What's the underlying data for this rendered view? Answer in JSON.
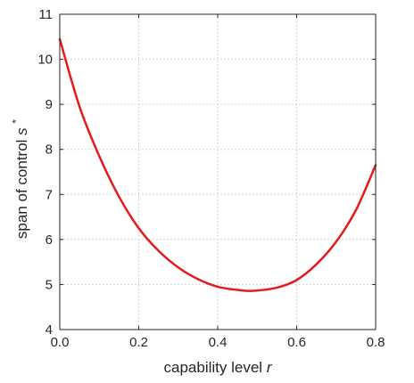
{
  "chart_data": {
    "type": "line",
    "title": "",
    "xlabel": "capability level",
    "xlabel_var": "r",
    "ylabel": "span of control",
    "ylabel_var": "s",
    "ylabel_sup": "*",
    "xlim": [
      0,
      0.8
    ],
    "ylim": [
      4,
      11
    ],
    "xticks": [
      0,
      0.2,
      0.4,
      0.6,
      0.8
    ],
    "xtick_labels": [
      "0.0",
      "0.2",
      "0.4",
      "0.6",
      "0.8"
    ],
    "yticks": [
      4,
      5,
      6,
      7,
      8,
      9,
      10,
      11
    ],
    "ytick_labels": [
      "4",
      "5",
      "6",
      "7",
      "8",
      "9",
      "10",
      "11"
    ],
    "grid": true,
    "series": [
      {
        "color": "#e41a1c",
        "x": [
          0.0,
          0.05,
          0.1,
          0.15,
          0.2,
          0.25,
          0.3,
          0.35,
          0.4,
          0.45,
          0.49,
          0.55,
          0.6,
          0.65,
          0.7,
          0.75,
          0.8
        ],
        "y": [
          10.45,
          8.95,
          7.85,
          6.95,
          6.25,
          5.75,
          5.38,
          5.12,
          4.95,
          4.88,
          4.86,
          4.93,
          5.1,
          5.45,
          5.95,
          6.65,
          7.65
        ]
      }
    ]
  }
}
